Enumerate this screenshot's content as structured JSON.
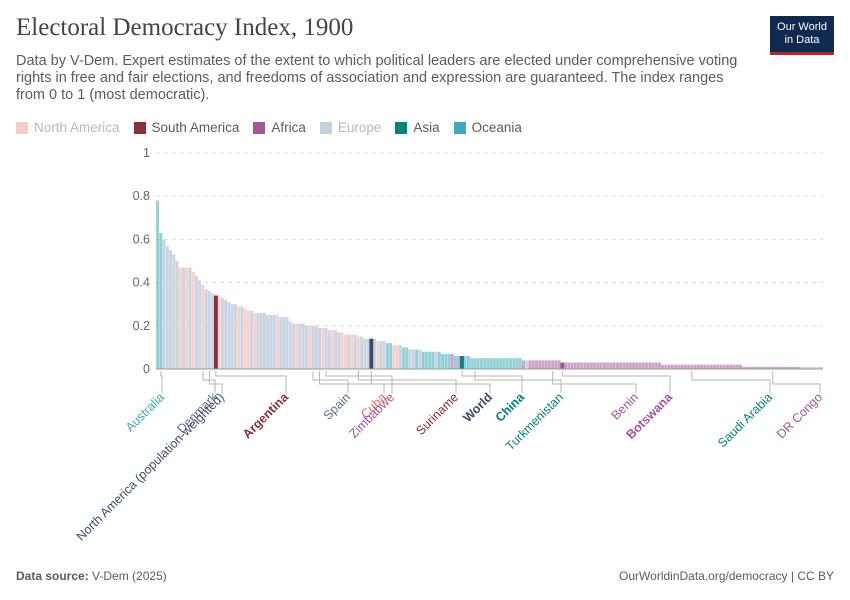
{
  "header": {
    "title": "Electoral Democracy Index, 1900",
    "subtitle": "Data by V-Dem. Expert estimates of the extent to which political leaders are elected under comprehensive voting rights in free and fair elections, and freedoms of association and expression are guaranteed. The index ranges from 0 to 1 (most democratic).",
    "logo_line1": "Our World",
    "logo_line2": "in Data"
  },
  "legend": [
    {
      "label": "North America",
      "color": "#f6cdc6",
      "muted": true
    },
    {
      "label": "South America",
      "color": "#883039",
      "muted": false
    },
    {
      "label": "Africa",
      "color": "#a2559c",
      "muted": false
    },
    {
      "label": "Europe",
      "color": "#c5cfe0",
      "muted": true
    },
    {
      "label": "Asia",
      "color": "#00847e",
      "muted": false
    },
    {
      "label": "Oceania",
      "color": "#38aaba",
      "muted": false
    }
  ],
  "footer": {
    "source_label": "Data source:",
    "source": "V-Dem (2025)",
    "url_license": "OurWorldinData.org/democracy | CC BY"
  },
  "chart_data": {
    "type": "bar",
    "ylim": [
      0,
      1
    ],
    "yticks": [
      0,
      0.2,
      0.4,
      0.6,
      0.8,
      1
    ],
    "ytick_labels": [
      "0",
      "0.2",
      "0.4",
      "0.6",
      "0.8",
      "1"
    ],
    "grid": true,
    "legend_position": "top-left",
    "colors": {
      "North America": "#f6cdc6",
      "South America": "#883039",
      "Africa": "#a2559c",
      "Europe": "#c5cfe0",
      "Asia": "#00847e",
      "Oceania": "#38aaba",
      "World": "#3b4a6b"
    },
    "bars_sorted_descending": [
      0.78,
      0.63,
      0.6,
      0.57,
      0.55,
      0.53,
      0.5,
      0.47,
      0.47,
      0.47,
      0.47,
      0.45,
      0.43,
      0.41,
      0.39,
      0.37,
      0.36,
      0.35,
      0.34,
      0.34,
      0.33,
      0.32,
      0.31,
      0.3,
      0.3,
      0.29,
      0.29,
      0.28,
      0.27,
      0.27,
      0.26,
      0.26,
      0.26,
      0.26,
      0.25,
      0.25,
      0.25,
      0.25,
      0.24,
      0.24,
      0.24,
      0.22,
      0.21,
      0.21,
      0.21,
      0.21,
      0.2,
      0.2,
      0.2,
      0.2,
      0.19,
      0.19,
      0.19,
      0.18,
      0.18,
      0.18,
      0.17,
      0.17,
      0.16,
      0.16,
      0.16,
      0.16,
      0.15,
      0.15,
      0.14,
      0.14,
      0.14,
      0.14,
      0.13,
      0.13,
      0.13,
      0.12,
      0.12,
      0.11,
      0.11,
      0.11,
      0.1,
      0.1,
      0.09,
      0.09,
      0.09,
      0.09,
      0.08,
      0.08,
      0.08,
      0.08,
      0.08,
      0.08,
      0.07,
      0.07,
      0.07,
      0.07,
      0.06,
      0.06,
      0.06,
      0.06,
      0.06,
      0.05,
      0.05,
      0.05,
      0.05,
      0.05,
      0.05,
      0.05,
      0.05,
      0.05,
      0.05,
      0.05,
      0.05,
      0.05,
      0.05,
      0.05,
      0.05,
      0.04,
      0.04,
      0.04,
      0.04,
      0.04,
      0.04,
      0.04,
      0.04,
      0.04,
      0.04,
      0.04,
      0.04,
      0.03,
      0.03,
      0.03,
      0.03,
      0.03,
      0.03,
      0.03,
      0.03,
      0.03,
      0.03,
      0.03,
      0.03,
      0.03,
      0.03,
      0.03,
      0.03,
      0.03,
      0.03,
      0.03,
      0.03,
      0.03,
      0.03,
      0.03,
      0.03,
      0.03,
      0.03,
      0.03,
      0.03,
      0.03,
      0.03,
      0.03,
      0.02,
      0.02,
      0.02,
      0.02,
      0.02,
      0.02,
      0.02,
      0.02,
      0.02,
      0.02,
      0.02,
      0.02,
      0.02,
      0.02,
      0.02,
      0.02,
      0.02,
      0.02,
      0.02,
      0.02,
      0.02,
      0.02,
      0.02,
      0.02,
      0.02,
      0.01,
      0.01,
      0.01,
      0.01,
      0.01,
      0.01,
      0.01,
      0.01,
      0.01,
      0.01,
      0.01,
      0.01,
      0.01,
      0.01,
      0.01,
      0.01,
      0.01,
      0.01,
      0.01,
      0.01,
      0.01,
      0.01,
      0.01,
      0.01,
      0.01
    ],
    "bar_regions": [
      "Oceania",
      "Oceania",
      "Europe",
      "Europe",
      "Europe",
      "Europe",
      "Europe",
      "North America",
      "Europe",
      "North America",
      "Europe",
      "North America",
      "Europe",
      "Europe",
      "North America",
      "Europe",
      "Europe",
      "Europe",
      "South America",
      "North America",
      "Europe",
      "Europe",
      "Europe",
      "Europe",
      "Europe",
      "North America",
      "Europe",
      "North America",
      "North America",
      "Europe",
      "North America",
      "Europe",
      "Europe",
      "Europe",
      "Europe",
      "Europe",
      "Europe",
      "North America",
      "Europe",
      "Europe",
      "Europe",
      "Europe",
      "Europe",
      "North America",
      "Europe",
      "Europe",
      "Europe",
      "North America",
      "Europe",
      "Europe",
      "Europe",
      "North America",
      "Europe",
      "Europe",
      "North America",
      "Europe",
      "Europe",
      "North America",
      "North America",
      "Europe",
      "North America",
      "Europe",
      "North America",
      "Europe",
      "Europe",
      "Europe",
      "World",
      "Europe",
      "North America",
      "Europe",
      "Europe",
      "Oceania",
      "Oceania",
      "North America",
      "North America",
      "Europe",
      "Oceania",
      "Oceania",
      "Europe",
      "Europe",
      "Oceania",
      "Europe",
      "Oceania",
      "Oceania",
      "Oceania",
      "Oceania",
      "Europe",
      "Oceania",
      "Oceania",
      "Oceania",
      "Oceania",
      "Africa",
      "Oceania",
      "Africa",
      "Asia",
      "Oceania",
      "Oceania",
      "Oceania",
      "Oceania",
      "Oceania",
      "Oceania",
      "Oceania",
      "Oceania",
      "Oceania",
      "Oceania",
      "Oceania",
      "Oceania",
      "Oceania",
      "Oceania",
      "Oceania",
      "Oceania",
      "Oceania",
      "Oceania",
      "Africa",
      "Europe",
      "Africa",
      "Africa",
      "Africa",
      "Africa",
      "Africa",
      "Africa",
      "Africa",
      "Africa",
      "Africa",
      "Africa",
      "Africa",
      "Africa",
      "Africa",
      "Africa",
      "Africa",
      "Africa",
      "Africa",
      "Africa",
      "Africa",
      "Africa",
      "Africa",
      "Africa",
      "Africa",
      "Africa",
      "Africa",
      "Africa",
      "Africa",
      "Africa",
      "Africa",
      "Africa",
      "Africa",
      "Africa",
      "Africa",
      "Africa",
      "Africa",
      "Africa",
      "Africa",
      "Africa",
      "Africa",
      "Africa",
      "Africa",
      "Africa",
      "Africa",
      "Africa",
      "Africa",
      "Africa",
      "Africa",
      "Africa",
      "Africa",
      "Africa",
      "Africa",
      "Africa",
      "Africa",
      "Africa",
      "Africa",
      "Africa",
      "Africa",
      "Africa",
      "Africa",
      "Africa",
      "Africa",
      "Africa",
      "Africa",
      "Africa",
      "Africa",
      "Africa",
      "Africa",
      "Africa",
      "Africa",
      "Africa",
      "Africa",
      "Africa",
      "Africa",
      "Africa",
      "Africa",
      "Africa",
      "Africa",
      "Africa",
      "Africa",
      "Africa",
      "Africa",
      "Africa",
      "Africa",
      "Africa"
    ],
    "highlighted_regions": [
      "South America",
      "Africa",
      "Asia",
      "Oceania",
      "World"
    ],
    "labeled_entities": [
      {
        "name": "Australia",
        "index": 1,
        "value": 0.63,
        "color": "#38aaba",
        "bold": false
      },
      {
        "name": "Denmark",
        "index": 14,
        "value": 0.39,
        "color": "#5a6b8c",
        "bold": false
      },
      {
        "name": "North America (population-weighted)",
        "index": 16,
        "value": 0.36,
        "color": "#3b4a6b",
        "bold": false
      },
      {
        "name": "Argentina",
        "index": 18,
        "value": 0.34,
        "color": "#883039",
        "bold": true
      },
      {
        "name": "Spain",
        "index": 48,
        "value": 0.2,
        "color": "#5a6b8c",
        "bold": false
      },
      {
        "name": "Cuba",
        "index": 50,
        "value": 0.19,
        "color": "#e56e5a",
        "bold": false
      },
      {
        "name": "Zimbabwe",
        "index": 52,
        "value": 0.19,
        "color": "#a2559c",
        "bold": false
      },
      {
        "name": "Suriname",
        "index": 62,
        "value": 0.15,
        "color": "#883039",
        "bold": false
      },
      {
        "name": "World",
        "index": 66,
        "value": 0.14,
        "color": "#3b4a6b",
        "bold": true
      },
      {
        "name": "China",
        "index": 94,
        "value": 0.06,
        "color": "#00847e",
        "bold": true
      },
      {
        "name": "Turkmenistan",
        "index": 98,
        "value": 0.05,
        "color": "#00847e",
        "bold": false
      },
      {
        "name": "Benin",
        "index": 122,
        "value": 0.04,
        "color": "#a2559c",
        "bold": false
      },
      {
        "name": "Botswana",
        "index": 125,
        "value": 0.03,
        "color": "#a2559c",
        "bold": true
      },
      {
        "name": "Saudi Arabia",
        "index": 165,
        "value": 0.02,
        "color": "#00847e",
        "bold": false
      },
      {
        "name": "DR Congo",
        "index": 190,
        "value": 0.01,
        "color": "#a2559c",
        "bold": false
      }
    ]
  }
}
